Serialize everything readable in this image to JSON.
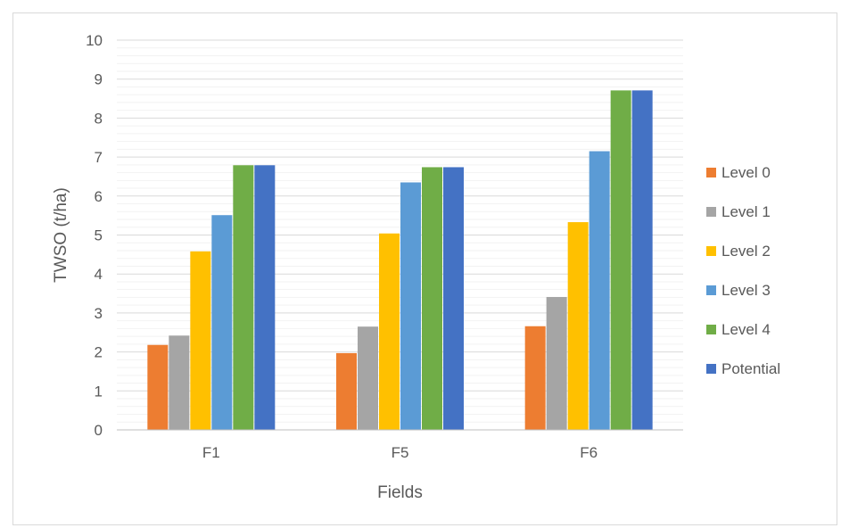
{
  "chart_data": {
    "type": "bar",
    "xlabel": "Fields",
    "ylabel": "TWSO (t/ha)",
    "categories": [
      "F1",
      "F5",
      "F6"
    ],
    "ylim": [
      0,
      10
    ],
    "yticks": [
      0,
      1,
      2,
      3,
      4,
      5,
      6,
      7,
      8,
      9,
      10
    ],
    "grid": true,
    "legend_position": "right",
    "series": [
      {
        "name": "Level 0",
        "color": "#ed7d31",
        "values": [
          2.18,
          1.97,
          2.66
        ]
      },
      {
        "name": "Level 1",
        "color": "#a5a5a5",
        "values": [
          2.42,
          2.65,
          3.41
        ]
      },
      {
        "name": "Level 2",
        "color": "#ffc000",
        "values": [
          4.58,
          5.04,
          5.33
        ]
      },
      {
        "name": "Level 3",
        "color": "#5b9bd5",
        "values": [
          5.51,
          6.35,
          7.15
        ]
      },
      {
        "name": "Level 4",
        "color": "#70ad47",
        "values": [
          6.79,
          6.74,
          8.71
        ]
      },
      {
        "name": "Potential",
        "color": "#4472c4",
        "values": [
          6.79,
          6.74,
          8.71
        ]
      }
    ]
  }
}
